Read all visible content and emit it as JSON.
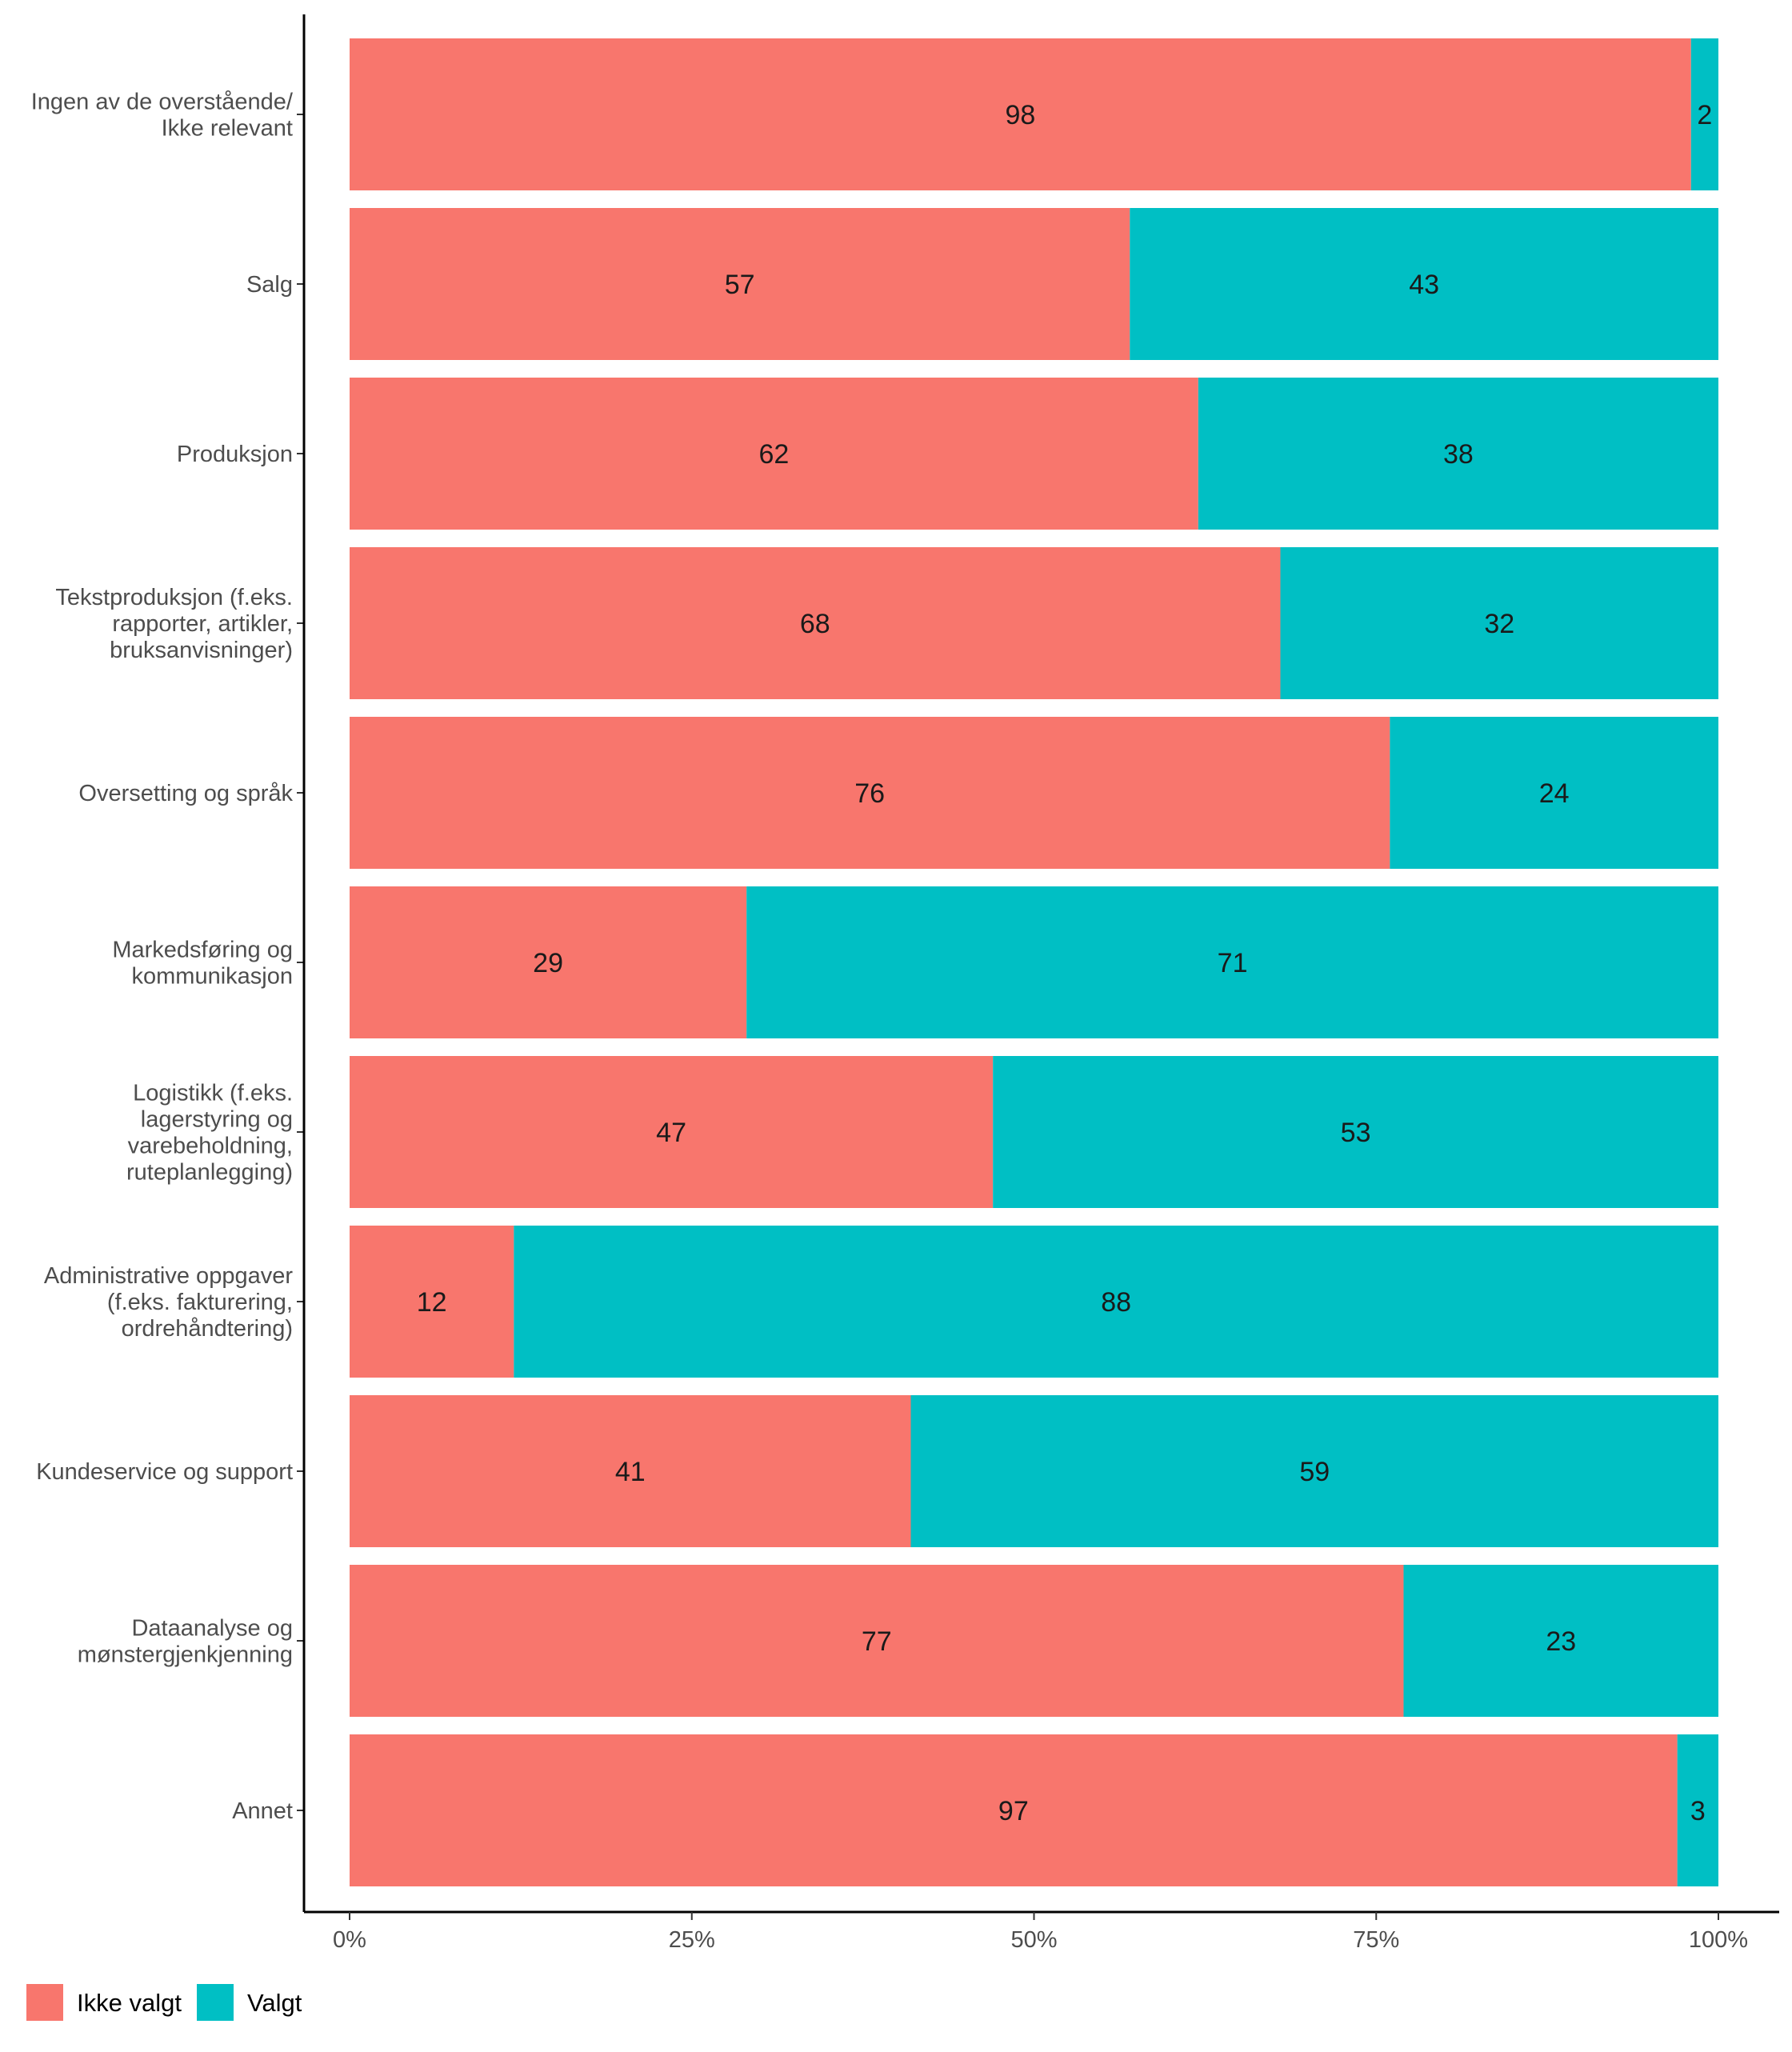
{
  "chart_data": {
    "type": "bar",
    "orientation": "horizontal",
    "stacked": "percent",
    "categories": [
      [
        "Ingen av de overstående/",
        "Ikke relevant"
      ],
      [
        "Salg"
      ],
      [
        "Produksjon"
      ],
      [
        "Tekstproduksjon (f.eks.",
        "rapporter, artikler,",
        "bruksanvisninger)"
      ],
      [
        "Oversetting og språk"
      ],
      [
        "Markedsføring og",
        "kommunikasjon"
      ],
      [
        "Logistikk (f.eks.",
        "lagerstyring og",
        "varebeholdning,",
        "ruteplanlegging)"
      ],
      [
        "Administrative oppgaver",
        "(f.eks. fakturering,",
        "ordrehåndtering)"
      ],
      [
        "Kundeservice og support"
      ],
      [
        "Dataanalyse og",
        "mønstergjenkjenning"
      ],
      [
        "Annet"
      ]
    ],
    "series": [
      {
        "name": "Ikke valgt",
        "color": "#F8766D",
        "values": [
          98,
          57,
          62,
          68,
          76,
          29,
          47,
          12,
          41,
          77,
          97
        ]
      },
      {
        "name": "Valgt",
        "color": "#00BFC4",
        "values": [
          2,
          43,
          38,
          32,
          24,
          71,
          53,
          88,
          59,
          23,
          3
        ]
      }
    ],
    "x_ticks": [
      "0%",
      "25%",
      "50%",
      "75%",
      "100%"
    ],
    "xlim": [
      0,
      100
    ],
    "xlabel": "",
    "ylabel": "",
    "grid": false,
    "legend_position": "bottom-left"
  }
}
